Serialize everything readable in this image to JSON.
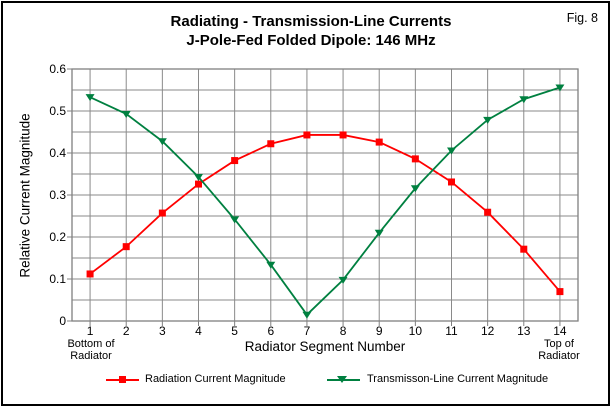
{
  "figure": {
    "fig_label": "Fig. 8"
  },
  "chart_data": {
    "type": "line",
    "title": "Radiating - Transmission-Line Currents",
    "subtitle": "J-Pole-Fed Folded Dipole: 146 MHz",
    "xlabel": "Radiator Segment Number",
    "ylabel": "Relative Current Magnitude",
    "x": [
      1,
      2,
      3,
      4,
      5,
      6,
      7,
      8,
      9,
      10,
      11,
      12,
      13,
      14
    ],
    "xlim": [
      0.5,
      14.5
    ],
    "ylim": [
      0,
      0.6
    ],
    "y_tick_labels": [
      "0",
      "0.1",
      "0.2",
      "0.3",
      "0.4",
      "0.5",
      "0.6"
    ],
    "y_grid_step": 0.05,
    "grid": true,
    "legend_position": "bottom",
    "x_start_label": [
      "Bottom of",
      "Radiator"
    ],
    "x_end_label": [
      "Top of",
      "Radiator"
    ],
    "colors": {
      "grid": "#8a8a8a",
      "axis": "#808080",
      "radiation": "#ff0000",
      "transmission": "#008040"
    },
    "series": [
      {
        "name": "Radiation Current Magnitude",
        "color": "#ff0000",
        "marker": "square",
        "values": [
          0.112,
          0.177,
          0.257,
          0.326,
          0.382,
          0.422,
          0.443,
          0.443,
          0.426,
          0.386,
          0.331,
          0.259,
          0.171,
          0.07
        ]
      },
      {
        "name": "Transmisson-Line Current Magnitude",
        "color": "#008040",
        "marker": "triangle-down",
        "values": [
          0.533,
          0.493,
          0.428,
          0.343,
          0.242,
          0.134,
          0.015,
          0.098,
          0.21,
          0.316,
          0.406,
          0.479,
          0.528,
          0.556
        ]
      }
    ]
  }
}
